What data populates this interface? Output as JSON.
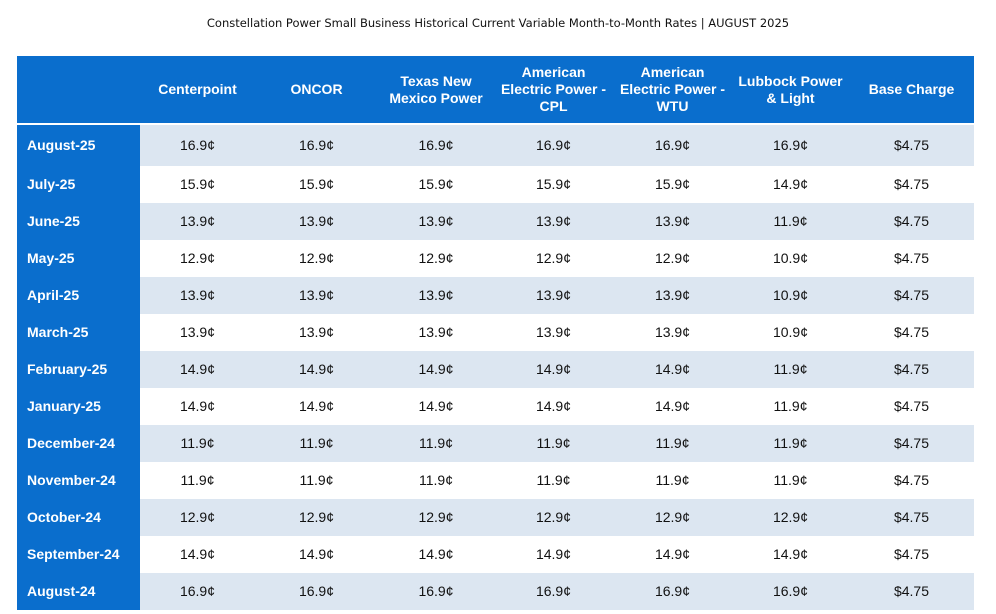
{
  "title": "Constellation Power Small Business Historical Current Variable Month-to-Month Rates  | AUGUST 2025",
  "columns": [
    "",
    "Centerpoint",
    "ONCOR",
    "Texas New Mexico Power",
    "American Electric Power - CPL",
    "American Electric Power - WTU",
    "Lubbock Power & Light",
    "Base Charge"
  ],
  "rows": [
    {
      "month": "August-25",
      "values": [
        "16.9¢",
        "16.9¢",
        "16.9¢",
        "16.9¢",
        "16.9¢",
        "16.9¢",
        "$4.75"
      ]
    },
    {
      "month": "July-25",
      "values": [
        "15.9¢",
        "15.9¢",
        "15.9¢",
        "15.9¢",
        "15.9¢",
        "14.9¢",
        "$4.75"
      ]
    },
    {
      "month": "June-25",
      "values": [
        "13.9¢",
        "13.9¢",
        "13.9¢",
        "13.9¢",
        "13.9¢",
        "11.9¢",
        "$4.75"
      ]
    },
    {
      "month": "May-25",
      "values": [
        "12.9¢",
        "12.9¢",
        "12.9¢",
        "12.9¢",
        "12.9¢",
        "10.9¢",
        "$4.75"
      ]
    },
    {
      "month": "April-25",
      "values": [
        "13.9¢",
        "13.9¢",
        "13.9¢",
        "13.9¢",
        "13.9¢",
        "10.9¢",
        "$4.75"
      ]
    },
    {
      "month": "March-25",
      "values": [
        "13.9¢",
        "13.9¢",
        "13.9¢",
        "13.9¢",
        "13.9¢",
        "10.9¢",
        "$4.75"
      ]
    },
    {
      "month": "February-25",
      "values": [
        "14.9¢",
        "14.9¢",
        "14.9¢",
        "14.9¢",
        "14.9¢",
        "11.9¢",
        "$4.75"
      ]
    },
    {
      "month": "January-25",
      "values": [
        "14.9¢",
        "14.9¢",
        "14.9¢",
        "14.9¢",
        "14.9¢",
        "11.9¢",
        "$4.75"
      ]
    },
    {
      "month": "December-24",
      "values": [
        "11.9¢",
        "11.9¢",
        "11.9¢",
        "11.9¢",
        "11.9¢",
        "11.9¢",
        "$4.75"
      ]
    },
    {
      "month": "November-24",
      "values": [
        "11.9¢",
        "11.9¢",
        "11.9¢",
        "11.9¢",
        "11.9¢",
        "11.9¢",
        "$4.75"
      ]
    },
    {
      "month": "October-24",
      "values": [
        "12.9¢",
        "12.9¢",
        "12.9¢",
        "12.9¢",
        "12.9¢",
        "12.9¢",
        "$4.75"
      ]
    },
    {
      "month": "September-24",
      "values": [
        "14.9¢",
        "14.9¢",
        "14.9¢",
        "14.9¢",
        "14.9¢",
        "14.9¢",
        "$4.75"
      ]
    },
    {
      "month": "August-24",
      "values": [
        "16.9¢",
        "16.9¢",
        "16.9¢",
        "16.9¢",
        "16.9¢",
        "16.9¢",
        "$4.75"
      ]
    }
  ],
  "colors": {
    "header_blue": "#0a6ecd",
    "row_shade": "#dce6f1",
    "row_plain": "#ffffff"
  }
}
